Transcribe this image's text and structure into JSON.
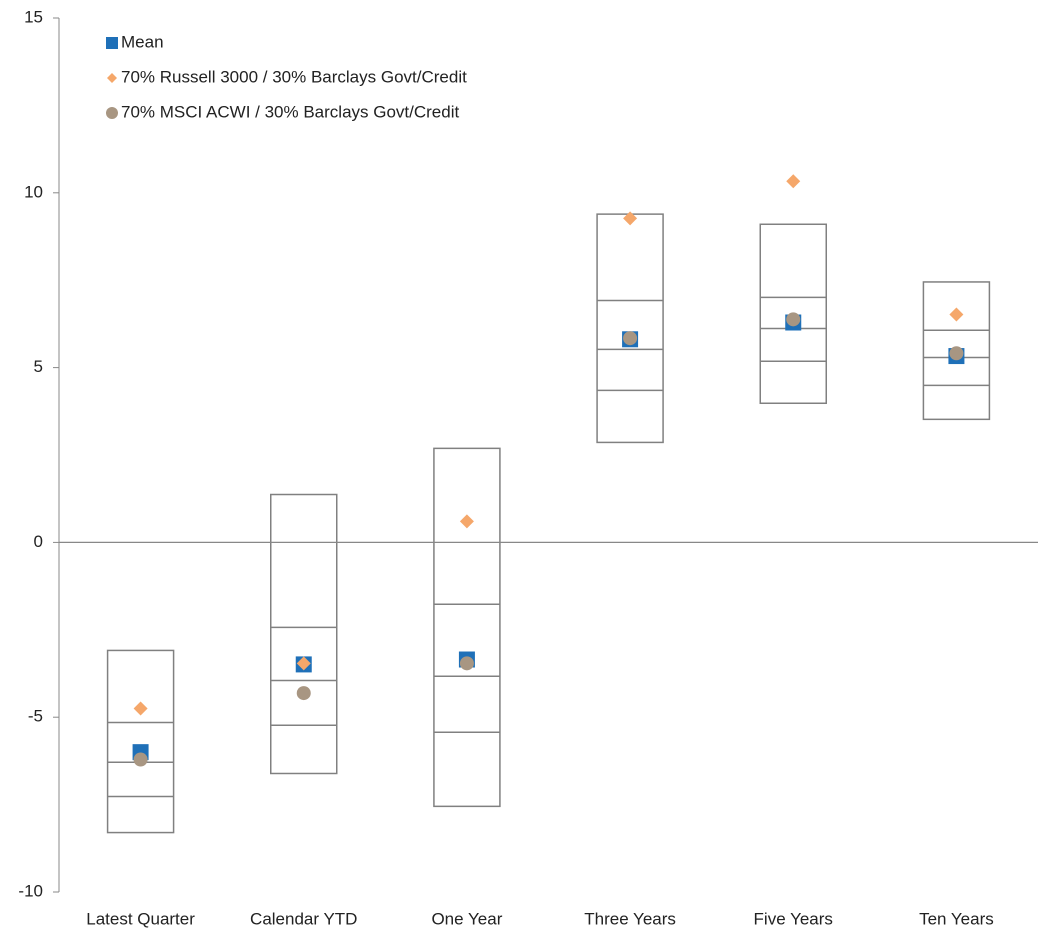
{
  "chart_data": {
    "type": "box",
    "categories": [
      "Latest Quarter",
      "Calendar YTD",
      "One Year",
      "Three Years",
      "Five Years",
      "Ten Years"
    ],
    "boxes": [
      [
        -3.09,
        -5.15,
        -6.29,
        -7.27,
        -8.3
      ],
      [
        1.37,
        -2.43,
        -3.95,
        -5.23,
        -6.61
      ],
      [
        2.69,
        -1.77,
        -3.83,
        -5.43,
        -7.55
      ],
      [
        9.39,
        6.92,
        5.52,
        4.35,
        2.86
      ],
      [
        9.1,
        7.01,
        6.12,
        5.18,
        3.98
      ],
      [
        7.45,
        6.07,
        5.29,
        4.49,
        3.52
      ]
    ],
    "box_color": "#808080",
    "series": [
      {
        "name": "Mean",
        "color": "#1f70b8",
        "marker": "square",
        "values": [
          -6.0,
          -3.49,
          -3.35,
          5.81,
          6.29,
          5.33
        ]
      },
      {
        "name": "70% Russell 3000 / 30% Barclays Govt/Credit",
        "color": "#f5a76a",
        "marker": "diamond",
        "values": [
          -4.75,
          -3.46,
          0.6,
          9.27,
          10.33,
          6.52
        ]
      },
      {
        "name": "70% MSCI ACWI / 30% Barclays Govt/Credit",
        "color": "#a89682",
        "marker": "circle",
        "values": [
          -6.21,
          -4.31,
          -3.46,
          5.84,
          6.38,
          5.41
        ]
      }
    ],
    "ylim": [
      -10,
      15
    ],
    "yticks": [
      15,
      10,
      5,
      0,
      -5,
      -10
    ],
    "grid": false,
    "legend": "top-left"
  }
}
